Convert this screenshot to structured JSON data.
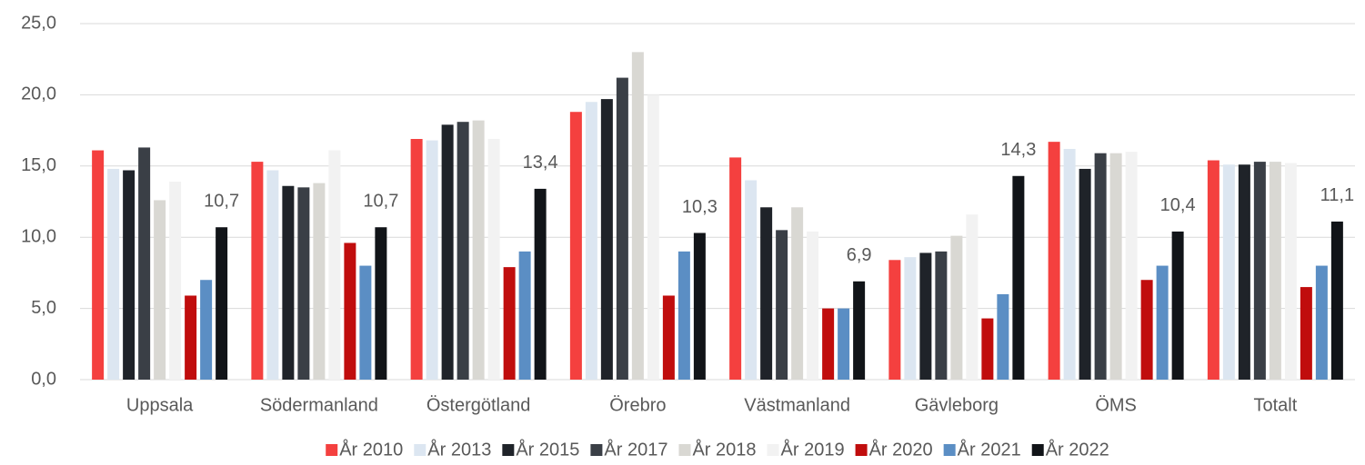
{
  "chart_data": {
    "type": "bar",
    "categories": [
      "Uppsala",
      "Södermanland",
      "Östergötland",
      "Örebro",
      "Västmanland",
      "Gävleborg",
      "ÖMS",
      "Totalt"
    ],
    "series": [
      {
        "name": "År 2010",
        "color": "#f4403f",
        "values": [
          16.1,
          15.3,
          16.9,
          18.8,
          15.6,
          8.4,
          16.7,
          15.4
        ]
      },
      {
        "name": "År 2013",
        "color": "#dce6f1",
        "values": [
          14.8,
          14.7,
          16.8,
          19.5,
          14.0,
          8.6,
          16.2,
          15.1
        ]
      },
      {
        "name": "År 2015",
        "color": "#1f2329",
        "values": [
          14.7,
          13.6,
          17.9,
          19.7,
          12.1,
          8.9,
          14.8,
          15.1
        ]
      },
      {
        "name": "År 2017",
        "color": "#3a3f46",
        "values": [
          16.3,
          13.5,
          18.1,
          21.2,
          10.5,
          9.0,
          15.9,
          15.3
        ]
      },
      {
        "name": "År 2018",
        "color": "#d9d8d3",
        "values": [
          12.6,
          13.8,
          18.2,
          23.0,
          12.1,
          10.1,
          15.9,
          15.3
        ]
      },
      {
        "name": "År 2019",
        "color": "#f2f2f2",
        "values": [
          13.9,
          16.1,
          16.9,
          20.0,
          10.4,
          11.6,
          16.0,
          15.2
        ]
      },
      {
        "name": "År 2020",
        "color": "#c00d0d",
        "values": [
          5.9,
          9.6,
          7.9,
          5.9,
          5.0,
          4.3,
          7.0,
          6.5
        ]
      },
      {
        "name": "År 2021",
        "color": "#5b8ec4",
        "values": [
          7.0,
          8.0,
          9.0,
          9.0,
          5.0,
          6.0,
          8.0,
          8.0
        ]
      },
      {
        "name": "År 2022",
        "color": "#111418",
        "values": [
          10.7,
          10.7,
          13.4,
          10.3,
          6.9,
          14.3,
          10.4,
          11.1
        ],
        "value_labels": [
          "10,7",
          "10,7",
          "13,4",
          "10,3",
          "6,9",
          "14,3",
          "10,4",
          "11,1"
        ]
      }
    ],
    "ylim": [
      0,
      25
    ],
    "yticks": [
      {
        "value": 0,
        "label": "0,0"
      },
      {
        "value": 5,
        "label": "5,0"
      },
      {
        "value": 10,
        "label": "10,0"
      },
      {
        "value": 15,
        "label": "15,0"
      },
      {
        "value": 20,
        "label": "20,0"
      },
      {
        "value": 25,
        "label": "25,0"
      }
    ],
    "grid": true,
    "legend": "bottom"
  }
}
